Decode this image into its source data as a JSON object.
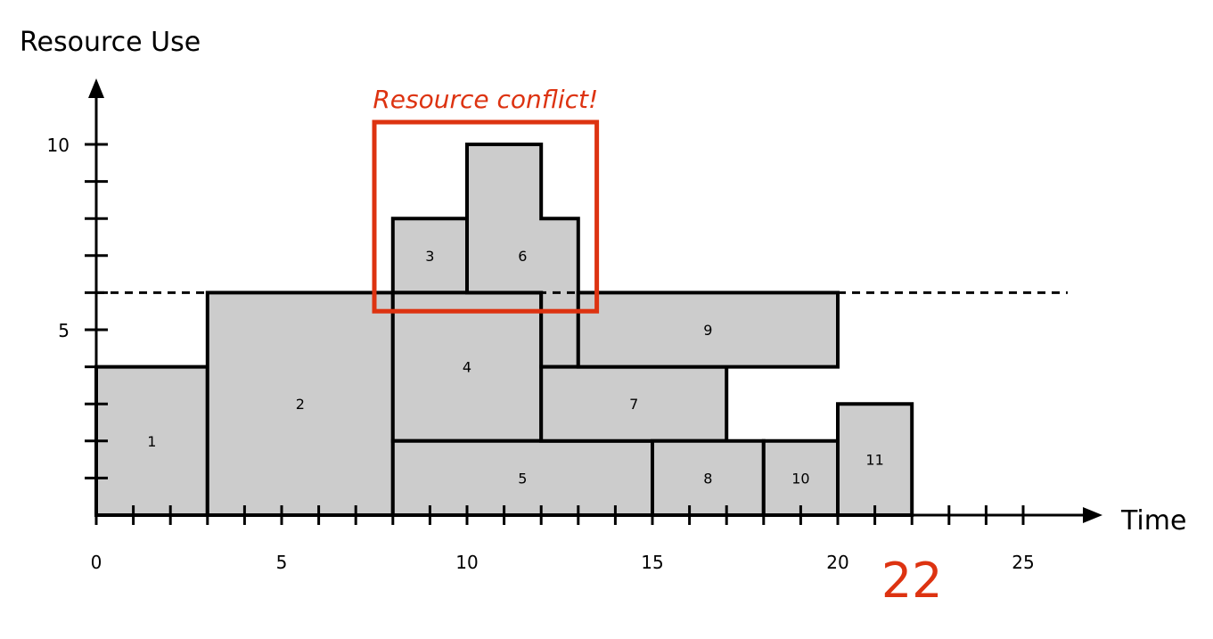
{
  "chart_data": {
    "type": "schedule",
    "ylabel": "Resource Use",
    "xlabel": "Time",
    "xlim": [
      0,
      27
    ],
    "ylim": [
      0,
      10.5
    ],
    "x_ticks": [
      0,
      5,
      10,
      15,
      20,
      25
    ],
    "y_ticks": [
      5,
      10
    ],
    "capacity": 6,
    "tasks": [
      {
        "label": "1",
        "rect": [
          0,
          0,
          3,
          4
        ]
      },
      {
        "label": "2",
        "rect": [
          3,
          0,
          8,
          6
        ]
      },
      {
        "label": "3",
        "rect": [
          8,
          6,
          10,
          8
        ]
      },
      {
        "label": "4",
        "rect": [
          8,
          2,
          12,
          6
        ]
      },
      {
        "label": "5",
        "rect": [
          8,
          0,
          15,
          2
        ]
      },
      {
        "label": "6",
        "poly": [
          [
            10,
            6
          ],
          [
            10,
            10
          ],
          [
            12,
            10
          ],
          [
            12,
            8
          ],
          [
            13,
            8
          ],
          [
            13,
            4
          ],
          [
            12,
            4
          ],
          [
            12,
            6
          ]
        ]
      },
      {
        "label": "7",
        "rect": [
          12,
          2,
          17,
          4
        ]
      },
      {
        "label": "8",
        "rect": [
          15,
          0,
          18,
          2
        ]
      },
      {
        "label": "9",
        "rect": [
          13,
          4,
          20,
          6
        ]
      },
      {
        "label": "10",
        "rect": [
          18,
          0,
          20,
          2
        ]
      },
      {
        "label": "11",
        "rect": [
          20,
          0,
          22,
          3
        ]
      }
    ],
    "conflict": {
      "label": "Resource conflict!",
      "x0": 7.5,
      "x1": 13.5,
      "y0": 5.5,
      "y1": 10.6
    },
    "makespan": {
      "label": "22",
      "x": 22
    },
    "colors": {
      "block_fill": "#cccccc",
      "block_stroke": "#000000",
      "conflict": "#dd3311"
    }
  }
}
